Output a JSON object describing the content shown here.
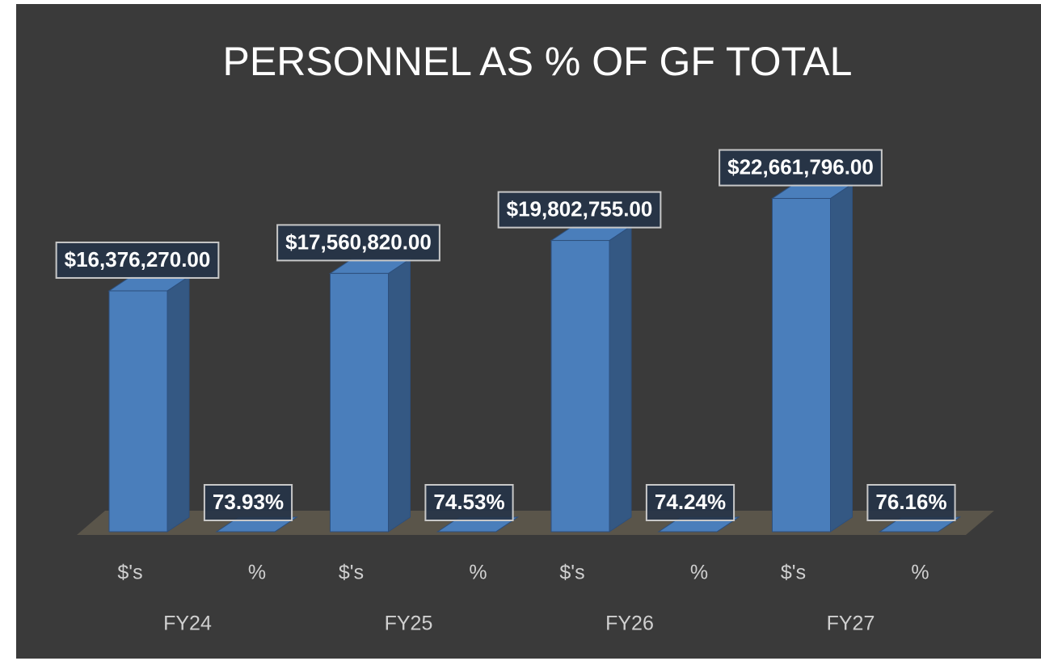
{
  "chart_data": {
    "type": "bar3d",
    "title": "PERSONNEL AS % OF GF TOTAL",
    "categories": [
      "FY24",
      "FY25",
      "FY26",
      "FY27"
    ],
    "series": [
      {
        "name": "$'s",
        "color": "#4a7ebb",
        "values": [
          16376270,
          17560820,
          19802755,
          22661796
        ],
        "value_labels": [
          "$16,376,270.00",
          "$17,560,820.00",
          "$19,802,755.00",
          "$22,661,796.00"
        ]
      },
      {
        "name": "%",
        "color": "#4a7ebb",
        "values": [
          73.93,
          74.53,
          74.24,
          76.16
        ],
        "value_labels": [
          "73.93%",
          "74.53%",
          "74.24%",
          "76.16%"
        ]
      }
    ],
    "ylim": [
      0,
      25000000
    ]
  }
}
